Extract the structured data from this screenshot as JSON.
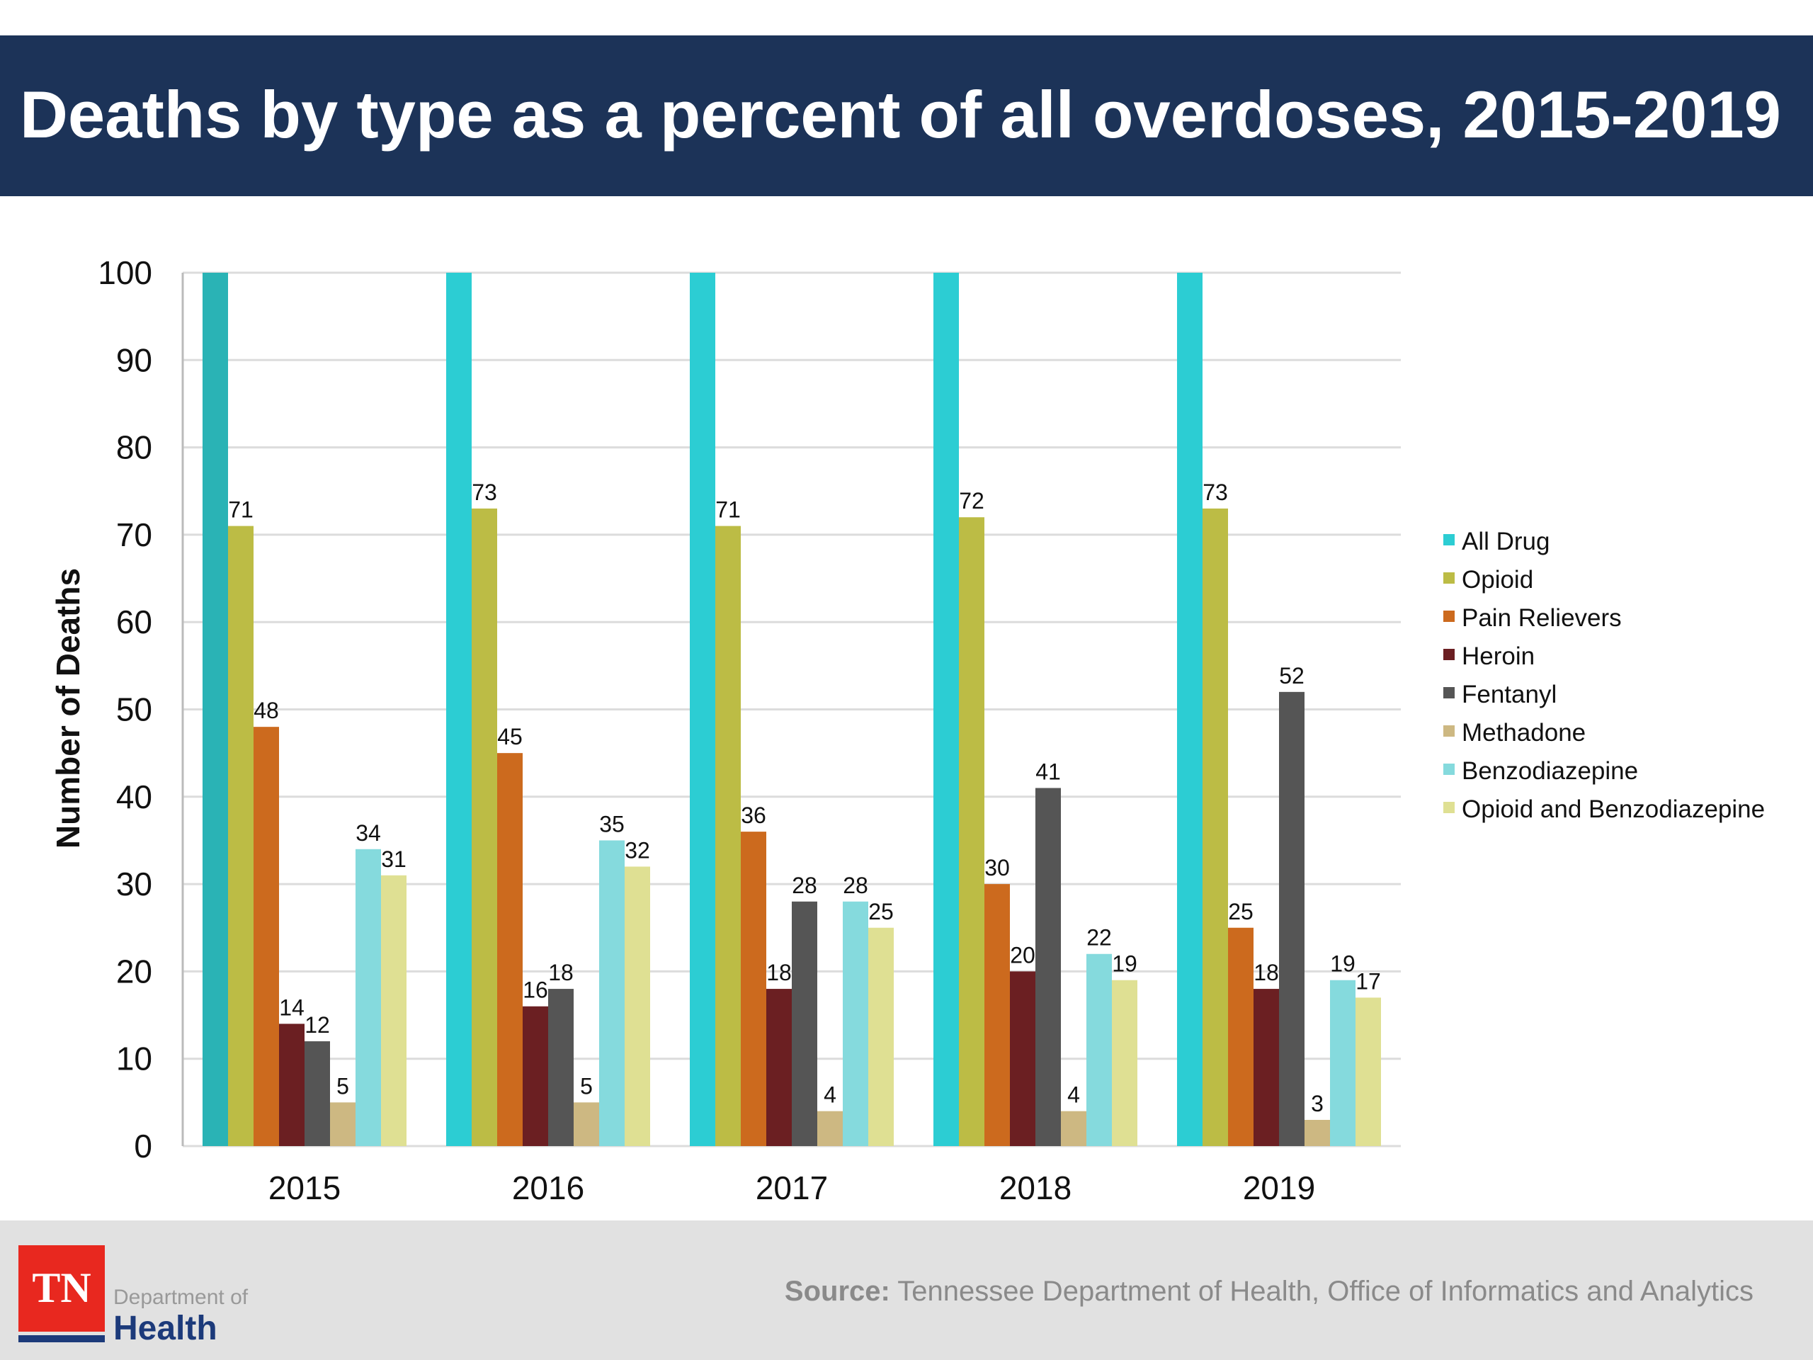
{
  "title": "Deaths by type as a percent of all overdoses, 2015-2019",
  "chart_data": {
    "type": "bar",
    "title": "Deaths by type as a percent of all overdoses, 2015-2019",
    "xlabel": "",
    "ylabel": "Number of Deaths",
    "ylim": [
      0,
      100
    ],
    "yticks": [
      0,
      10,
      20,
      30,
      40,
      50,
      60,
      70,
      80,
      90,
      100
    ],
    "grid": true,
    "legend_position": "right",
    "categories": [
      "2015",
      "2016",
      "2017",
      "2018",
      "2019"
    ],
    "series": [
      {
        "name": "All Drug",
        "color": "#2ccdd3",
        "values": [
          100,
          100,
          100,
          100,
          100
        ],
        "labeled": false
      },
      {
        "name": "Opioid",
        "color": "#bcbc45",
        "values": [
          71,
          73,
          71,
          72,
          73
        ],
        "labeled": true
      },
      {
        "name": "Pain Relievers",
        "color": "#cc6a1e",
        "values": [
          48,
          45,
          36,
          30,
          25
        ],
        "labeled": true
      },
      {
        "name": "Heroin",
        "color": "#6b1f22",
        "values": [
          14,
          16,
          18,
          20,
          18
        ],
        "labeled": true
      },
      {
        "name": "Fentanyl",
        "color": "#555555",
        "values": [
          12,
          18,
          28,
          41,
          52
        ],
        "labeled": true
      },
      {
        "name": "Methadone",
        "color": "#cdb882",
        "values": [
          5,
          5,
          4,
          4,
          3
        ],
        "labeled": true
      },
      {
        "name": "Benzodiazepine",
        "color": "#85dadd",
        "values": [
          34,
          35,
          28,
          22,
          19
        ],
        "labeled": true
      },
      {
        "name": "Opioid and Benzodiazepine",
        "color": "#dfe093",
        "values": [
          31,
          32,
          25,
          19,
          17
        ],
        "labeled": true
      }
    ]
  },
  "footer": {
    "logo_text": "TN",
    "dept_line1": "Department of",
    "dept_line2": "Health",
    "source_label": "Source:",
    "source_text": " Tennessee Department of Health, Office of Informatics and Analytics"
  }
}
